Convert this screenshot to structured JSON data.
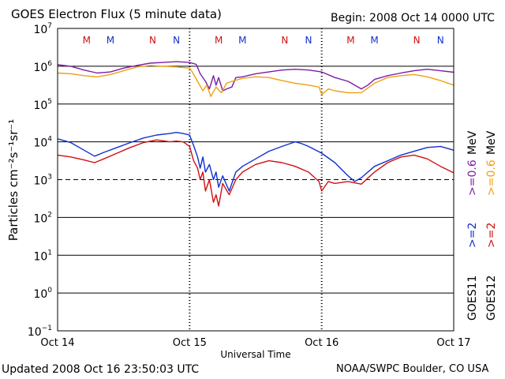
{
  "header": {
    "title": "GOES Electron Flux (5 minute data)",
    "begin": "Begin: 2008 Oct 14 0000 UTC"
  },
  "footer": {
    "updated": "Updated 2008 Oct 16 23:50:03 UTC",
    "source": "NOAA/SWPC Boulder, CO USA"
  },
  "chart_data": {
    "type": "line",
    "title": "GOES Electron Flux (5 minute data)",
    "xlabel": "Universal Time",
    "ylabel": "Particles cm⁻²s⁻¹sr⁻¹",
    "x_unit": "days since 2008 Oct 14 0000 UTC",
    "xlim": [
      0,
      3
    ],
    "xticks": [
      0,
      1,
      2,
      3
    ],
    "xtick_labels": [
      "Oct 14",
      "Oct 15",
      "Oct 16",
      "Oct 17"
    ],
    "y_scale": "log",
    "ylim": [
      -1,
      7
    ],
    "ytick_labels": [
      {
        "exp": 7,
        "label": "10",
        "sup": "7"
      },
      {
        "exp": 6,
        "label": "10",
        "sup": "6"
      },
      {
        "exp": 5,
        "label": "10",
        "sup": "5"
      },
      {
        "exp": 4,
        "label": "10",
        "sup": "4"
      },
      {
        "exp": 3,
        "label": "10",
        "sup": "3"
      },
      {
        "exp": 2,
        "label": "10",
        "sup": "2"
      },
      {
        "exp": 1,
        "label": "10",
        "sup": "1"
      },
      {
        "exp": 0,
        "label": "10",
        "sup": "0"
      },
      {
        "exp": -1,
        "label": "10",
        "sup": "−1"
      }
    ],
    "threshold": {
      "exp": 3,
      "style": "dashed"
    },
    "grid": "horizontal decades",
    "markers": [
      {
        "label": "M",
        "x": 0.22,
        "color": "#d01010"
      },
      {
        "label": "M",
        "x": 0.4,
        "color": "#1030d0"
      },
      {
        "label": "N",
        "x": 0.72,
        "color": "#d01010"
      },
      {
        "label": "N",
        "x": 0.9,
        "color": "#1030d0"
      },
      {
        "label": "M",
        "x": 1.22,
        "color": "#d01010"
      },
      {
        "label": "M",
        "x": 1.4,
        "color": "#1030d0"
      },
      {
        "label": "N",
        "x": 1.72,
        "color": "#d01010"
      },
      {
        "label": "N",
        "x": 1.9,
        "color": "#1030d0"
      },
      {
        "label": "M",
        "x": 2.22,
        "color": "#d01010"
      },
      {
        "label": "M",
        "x": 2.4,
        "color": "#1030d0"
      },
      {
        "label": "N",
        "x": 2.72,
        "color": "#d01010"
      },
      {
        "label": "N",
        "x": 2.9,
        "color": "#1030d0"
      }
    ],
    "legend": {
      "placement": "right",
      "satellites": [
        "GOES11",
        "GOES12"
      ],
      "rows": [
        {
          "label": "MeV",
          "color": "#000000"
        },
        {
          "label": ">=0.6",
          "color": "#7a1ea8"
        },
        {
          "label": ">=0.6",
          "color": "#f0a010"
        },
        {
          "label": ">=2",
          "color": "#1030d0"
        },
        {
          "label": ">=2",
          "color": "#d01010"
        },
        {
          "label": "MeV",
          "color": "#000000"
        }
      ]
    },
    "series": [
      {
        "name": "GOES11 >=0.6 MeV",
        "color": "#7a1ea8",
        "points": [
          [
            0,
            6.04
          ],
          [
            0.1,
            6.0
          ],
          [
            0.2,
            5.9
          ],
          [
            0.3,
            5.82
          ],
          [
            0.4,
            5.85
          ],
          [
            0.5,
            5.95
          ],
          [
            0.6,
            6.02
          ],
          [
            0.7,
            6.08
          ],
          [
            0.8,
            6.1
          ],
          [
            0.9,
            6.12
          ],
          [
            1.0,
            6.1
          ],
          [
            1.05,
            6.05
          ],
          [
            1.08,
            5.8
          ],
          [
            1.12,
            5.6
          ],
          [
            1.15,
            5.4
          ],
          [
            1.18,
            5.75
          ],
          [
            1.2,
            5.5
          ],
          [
            1.22,
            5.7
          ],
          [
            1.25,
            5.35
          ],
          [
            1.28,
            5.4
          ],
          [
            1.32,
            5.45
          ],
          [
            1.35,
            5.7
          ],
          [
            1.4,
            5.72
          ],
          [
            1.5,
            5.8
          ],
          [
            1.6,
            5.85
          ],
          [
            1.7,
            5.9
          ],
          [
            1.8,
            5.92
          ],
          [
            1.9,
            5.9
          ],
          [
            2.0,
            5.85
          ],
          [
            2.1,
            5.7
          ],
          [
            2.2,
            5.6
          ],
          [
            2.3,
            5.4
          ],
          [
            2.35,
            5.5
          ],
          [
            2.4,
            5.65
          ],
          [
            2.5,
            5.75
          ],
          [
            2.6,
            5.82
          ],
          [
            2.7,
            5.88
          ],
          [
            2.8,
            5.92
          ],
          [
            2.9,
            5.88
          ],
          [
            3.0,
            5.84
          ]
        ]
      },
      {
        "name": "GOES12 >=0.6 MeV",
        "color": "#f0a010",
        "points": [
          [
            0,
            5.82
          ],
          [
            0.1,
            5.8
          ],
          [
            0.2,
            5.75
          ],
          [
            0.3,
            5.72
          ],
          [
            0.4,
            5.78
          ],
          [
            0.5,
            5.88
          ],
          [
            0.6,
            5.98
          ],
          [
            0.7,
            6.02
          ],
          [
            0.8,
            6.0
          ],
          [
            0.9,
            5.98
          ],
          [
            1.0,
            5.95
          ],
          [
            1.02,
            5.85
          ],
          [
            1.06,
            5.6
          ],
          [
            1.1,
            5.35
          ],
          [
            1.13,
            5.5
          ],
          [
            1.16,
            5.2
          ],
          [
            1.2,
            5.45
          ],
          [
            1.24,
            5.3
          ],
          [
            1.28,
            5.55
          ],
          [
            1.32,
            5.6
          ],
          [
            1.4,
            5.68
          ],
          [
            1.5,
            5.72
          ],
          [
            1.6,
            5.7
          ],
          [
            1.7,
            5.62
          ],
          [
            1.8,
            5.55
          ],
          [
            1.9,
            5.5
          ],
          [
            1.98,
            5.45
          ],
          [
            2.0,
            5.25
          ],
          [
            2.05,
            5.4
          ],
          [
            2.1,
            5.35
          ],
          [
            2.2,
            5.3
          ],
          [
            2.3,
            5.3
          ],
          [
            2.4,
            5.55
          ],
          [
            2.5,
            5.7
          ],
          [
            2.6,
            5.75
          ],
          [
            2.7,
            5.78
          ],
          [
            2.8,
            5.72
          ],
          [
            2.9,
            5.62
          ],
          [
            3.0,
            5.5
          ]
        ]
      },
      {
        "name": "GOES11 >=2 MeV",
        "color": "#1030d0",
        "points": [
          [
            0,
            4.08
          ],
          [
            0.1,
            3.98
          ],
          [
            0.2,
            3.78
          ],
          [
            0.28,
            3.62
          ],
          [
            0.35,
            3.72
          ],
          [
            0.45,
            3.85
          ],
          [
            0.55,
            3.98
          ],
          [
            0.65,
            4.1
          ],
          [
            0.75,
            4.18
          ],
          [
            0.85,
            4.22
          ],
          [
            0.9,
            4.25
          ],
          [
            0.95,
            4.22
          ],
          [
            1.0,
            4.18
          ],
          [
            1.03,
            3.9
          ],
          [
            1.06,
            3.6
          ],
          [
            1.08,
            3.3
          ],
          [
            1.1,
            3.6
          ],
          [
            1.12,
            3.2
          ],
          [
            1.15,
            3.4
          ],
          [
            1.18,
            3.0
          ],
          [
            1.2,
            3.2
          ],
          [
            1.22,
            2.8
          ],
          [
            1.25,
            3.1
          ],
          [
            1.3,
            2.7
          ],
          [
            1.35,
            3.2
          ],
          [
            1.4,
            3.35
          ],
          [
            1.5,
            3.55
          ],
          [
            1.6,
            3.75
          ],
          [
            1.7,
            3.88
          ],
          [
            1.8,
            4.0
          ],
          [
            1.85,
            3.95
          ],
          [
            1.9,
            3.88
          ],
          [
            2.0,
            3.7
          ],
          [
            2.1,
            3.45
          ],
          [
            2.2,
            3.1
          ],
          [
            2.25,
            2.95
          ],
          [
            2.3,
            3.05
          ],
          [
            2.4,
            3.35
          ],
          [
            2.5,
            3.5
          ],
          [
            2.6,
            3.65
          ],
          [
            2.7,
            3.75
          ],
          [
            2.8,
            3.85
          ],
          [
            2.9,
            3.88
          ],
          [
            3.0,
            3.78
          ]
        ]
      },
      {
        "name": "GOES12 >=2 MeV",
        "color": "#d01010",
        "points": [
          [
            0,
            3.65
          ],
          [
            0.1,
            3.6
          ],
          [
            0.2,
            3.52
          ],
          [
            0.28,
            3.45
          ],
          [
            0.35,
            3.55
          ],
          [
            0.45,
            3.7
          ],
          [
            0.55,
            3.85
          ],
          [
            0.65,
            3.98
          ],
          [
            0.75,
            4.05
          ],
          [
            0.85,
            4.0
          ],
          [
            0.9,
            4.02
          ],
          [
            0.95,
            4.0
          ],
          [
            1.0,
            3.88
          ],
          [
            1.03,
            3.5
          ],
          [
            1.06,
            3.3
          ],
          [
            1.08,
            3.0
          ],
          [
            1.1,
            3.2
          ],
          [
            1.12,
            2.7
          ],
          [
            1.15,
            3.0
          ],
          [
            1.18,
            2.4
          ],
          [
            1.2,
            2.6
          ],
          [
            1.22,
            2.3
          ],
          [
            1.25,
            2.9
          ],
          [
            1.3,
            2.6
          ],
          [
            1.35,
            3.0
          ],
          [
            1.4,
            3.2
          ],
          [
            1.5,
            3.4
          ],
          [
            1.6,
            3.5
          ],
          [
            1.7,
            3.45
          ],
          [
            1.8,
            3.35
          ],
          [
            1.9,
            3.2
          ],
          [
            1.98,
            2.95
          ],
          [
            2.0,
            2.7
          ],
          [
            2.05,
            2.95
          ],
          [
            2.1,
            2.9
          ],
          [
            2.2,
            2.95
          ],
          [
            2.3,
            2.88
          ],
          [
            2.4,
            3.2
          ],
          [
            2.5,
            3.45
          ],
          [
            2.6,
            3.6
          ],
          [
            2.7,
            3.65
          ],
          [
            2.8,
            3.55
          ],
          [
            2.9,
            3.35
          ],
          [
            3.0,
            3.18
          ]
        ]
      }
    ]
  }
}
